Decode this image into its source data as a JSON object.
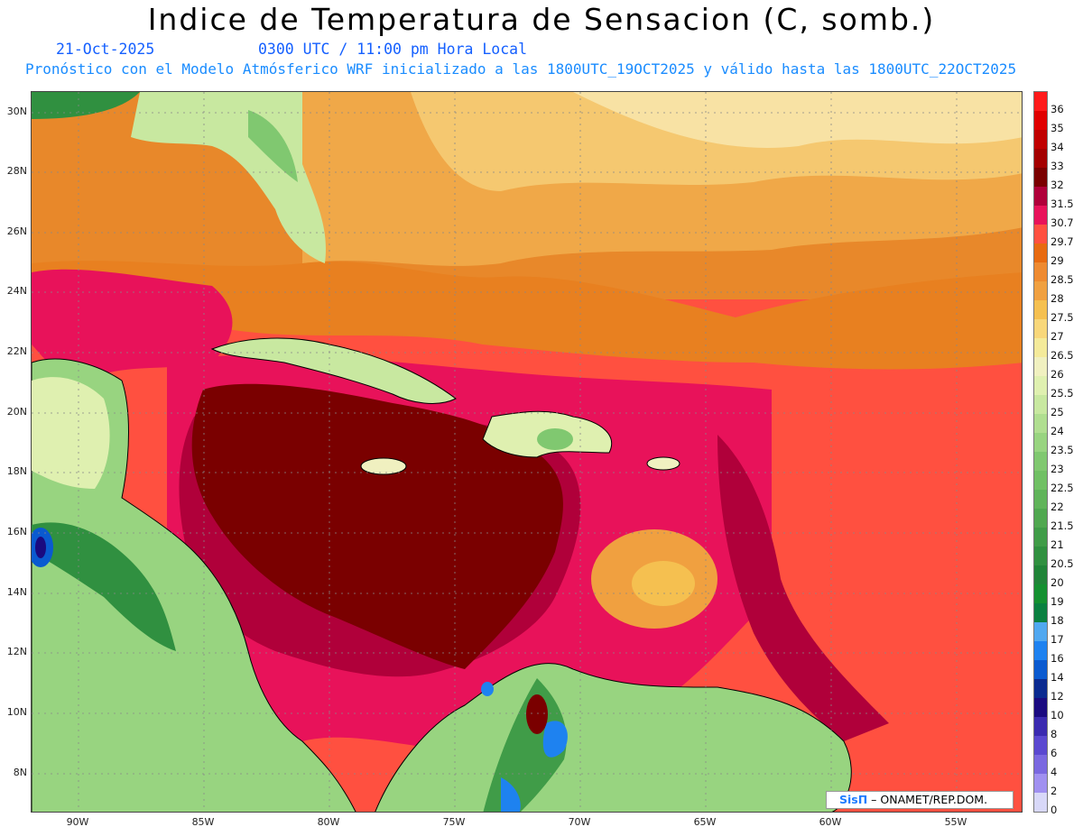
{
  "header": {
    "title": "Indice de Temperatura de Sensacion (C, somb.)",
    "date": "21-Oct-2025",
    "valid_time": "0300 UTC / 11:00 pm Hora Local",
    "model_run": "Pronóstico con el Modelo Atmósferico WRF inicializado a las 1800UTC_19OCT2025 y válido hasta las  1800UTC_22OCT2025"
  },
  "latitude_labels": [
    "30N",
    "28N",
    "26N",
    "24N",
    "22N",
    "20N",
    "18N",
    "16N",
    "14N",
    "12N",
    "10N",
    "8N"
  ],
  "longitude_labels": [
    "90W",
    "85W",
    "80W",
    "75W",
    "70W",
    "65W",
    "60W",
    "55W"
  ],
  "colorbar": {
    "labels": [
      "36",
      "35",
      "34",
      "33",
      "32",
      "31.5",
      "30.7",
      "29.7",
      "29",
      "28.5",
      "28",
      "27.5",
      "27",
      "26.5",
      "26",
      "25.5",
      "25",
      "24",
      "23.5",
      "23",
      "22.5",
      "22",
      "21.5",
      "21",
      "20.5",
      "20",
      "19",
      "18",
      "17",
      "16",
      "14",
      "12",
      "10",
      "8",
      "6",
      "4",
      "2",
      "0"
    ],
    "colors": [
      "#ff1a1a",
      "#e00000",
      "#c00000",
      "#a40000",
      "#7a0000",
      "#b0003a",
      "#e8125a",
      "#ff5040",
      "#e86a10",
      "#ee8a30",
      "#f0a040",
      "#f5c050",
      "#f8d77a",
      "#f4ea9a",
      "#f0f0c0",
      "#dff0b0",
      "#c8e8a0",
      "#b0de90",
      "#98d480",
      "#80c870",
      "#70c064",
      "#60b45a",
      "#50a850",
      "#409c48",
      "#309040",
      "#208438",
      "#149030",
      "#0a8040",
      "#50a8f0",
      "#1e82f0",
      "#0a5ad0",
      "#0a2a90",
      "#1a0a80",
      "#3a2ab0",
      "#5a48d0",
      "#7a68e0",
      "#a090f0",
      "#d8d8f8"
    ]
  },
  "credit": {
    "logo": "SisΠ",
    "text": " – ONAMET/REP.DOM."
  }
}
